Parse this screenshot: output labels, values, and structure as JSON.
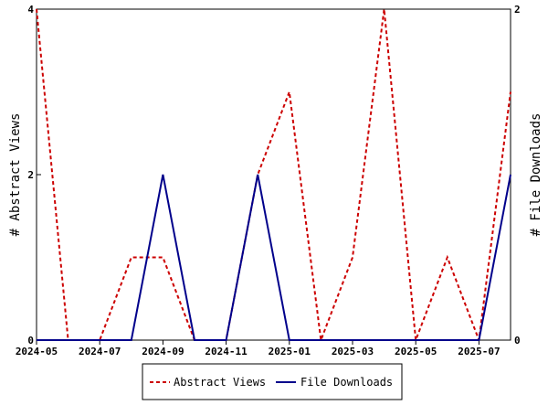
{
  "chart_data": {
    "type": "line",
    "ylabel": "# Abstract Views",
    "y2label": "# File Downloads",
    "x_axis": "dates",
    "x": [
      "2024-05",
      "2024-06",
      "2024-07",
      "2024-08",
      "2024-09",
      "2024-10",
      "2024-11",
      "2024-12",
      "2025-01",
      "2025-02",
      "2025-03",
      "2025-04",
      "2025-05",
      "2025-06",
      "2025-07",
      "2025-08"
    ],
    "x_ticks": [
      "2024-05",
      "2024-07",
      "2024-09",
      "2024-11",
      "2025-01",
      "2025-03",
      "2025-05",
      "2025-07"
    ],
    "xlim": [
      "2024-05",
      "2025-08"
    ],
    "ylim": [
      0,
      4
    ],
    "y_ticks": [
      "0",
      "2",
      "4"
    ],
    "y2lim": [
      0,
      2
    ],
    "y2_ticks": [
      "0",
      "2"
    ],
    "grid": false,
    "legend_position": "bottom-center",
    "series": [
      {
        "name": "Abstract Views",
        "axis": "left",
        "color": "#cc0000",
        "dash": "dashed",
        "values": [
          4,
          0,
          0,
          1,
          1,
          0,
          0,
          2,
          3,
          0,
          1,
          4,
          0,
          1,
          0,
          3
        ]
      },
      {
        "name": "File Downloads",
        "axis": "right",
        "color": "#00008b",
        "dash": "solid",
        "values": [
          0,
          0,
          0,
          0,
          1,
          0,
          0,
          1,
          0,
          0,
          0,
          0,
          0,
          0,
          0,
          1
        ]
      }
    ]
  }
}
